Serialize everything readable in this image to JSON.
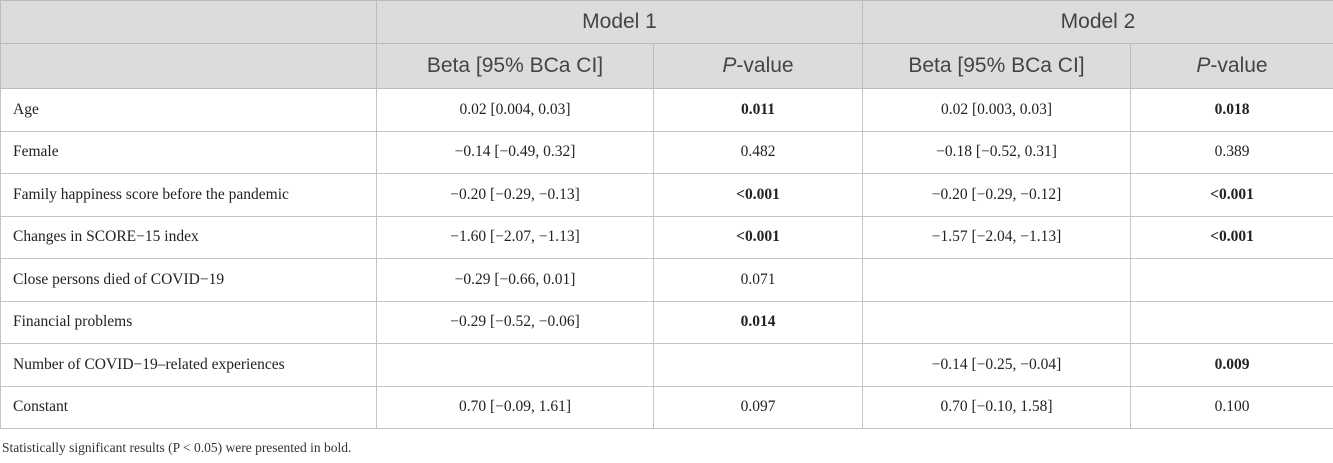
{
  "table": {
    "models": [
      "Model 1",
      "Model 2"
    ],
    "sub_headers": {
      "beta": "Beta [95% BCa CI]",
      "p_prefix": "P",
      "p_suffix": "-value"
    },
    "rows": [
      {
        "label": "Age",
        "m1_beta": "0.02 [0.004, 0.03]",
        "m1_p": "0.011",
        "m1_sig": true,
        "m2_beta": "0.02 [0.003, 0.03]",
        "m2_p": "0.018",
        "m2_sig": true
      },
      {
        "label": "Female",
        "m1_beta": "−0.14 [−0.49, 0.32]",
        "m1_p": "0.482",
        "m1_sig": false,
        "m2_beta": "−0.18 [−0.52, 0.31]",
        "m2_p": "0.389",
        "m2_sig": false
      },
      {
        "label": "Family happiness score before the pandemic",
        "m1_beta": "−0.20 [−0.29, −0.13]",
        "m1_p": "<0.001",
        "m1_sig": true,
        "m2_beta": "−0.20 [−0.29, −0.12]",
        "m2_p": "<0.001",
        "m2_sig": true
      },
      {
        "label": "Changes in SCORE−15 index",
        "m1_beta": "−1.60 [−2.07, −1.13]",
        "m1_p": "<0.001",
        "m1_sig": true,
        "m2_beta": "−1.57 [−2.04, −1.13]",
        "m2_p": "<0.001",
        "m2_sig": true
      },
      {
        "label": "Close persons died of COVID−19",
        "m1_beta": "−0.29 [−0.66, 0.01]",
        "m1_p": "0.071",
        "m1_sig": false,
        "m2_beta": "",
        "m2_p": "",
        "m2_sig": false
      },
      {
        "label": "Financial problems",
        "m1_beta": "−0.29 [−0.52, −0.06]",
        "m1_p": "0.014",
        "m1_sig": true,
        "m2_beta": "",
        "m2_p": "",
        "m2_sig": false
      },
      {
        "label": "Number of COVID−19–related experiences",
        "m1_beta": "",
        "m1_p": "",
        "m1_sig": false,
        "m2_beta": "−0.14 [−0.25, −0.04]",
        "m2_p": "0.009",
        "m2_sig": true
      },
      {
        "label": "Constant",
        "m1_beta": "0.70 [−0.09, 1.61]",
        "m1_p": "0.097",
        "m1_sig": false,
        "m2_beta": "0.70 [−0.10, 1.58]",
        "m2_p": "0.100",
        "m2_sig": false
      }
    ],
    "footnote": "Statistically significant results (P < 0.05) were presented in bold."
  }
}
